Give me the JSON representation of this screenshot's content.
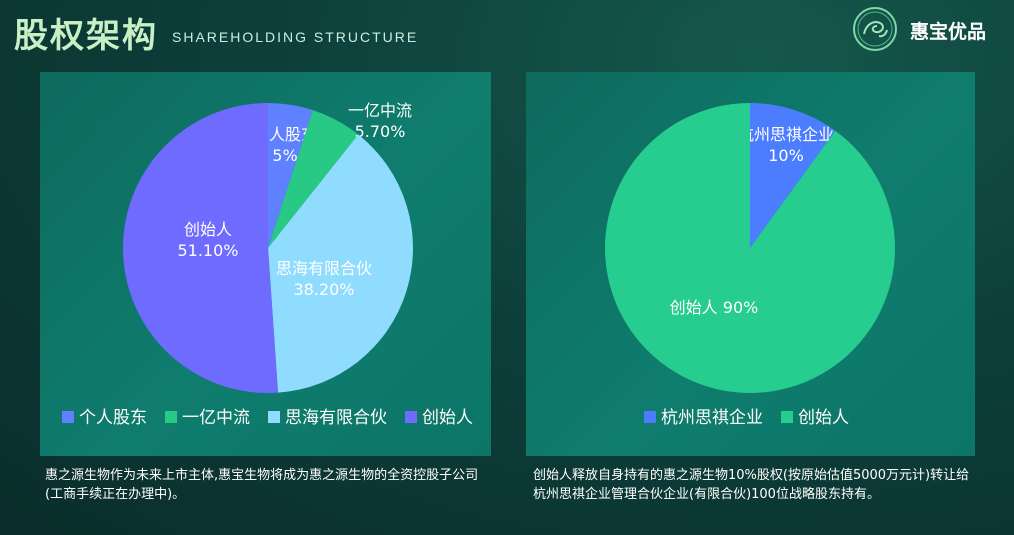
{
  "header": {
    "title_cn": "股权架构",
    "title_en": "SHAREHOLDING STRUCTURE",
    "brand": "惠宝优品",
    "logo_icon": "dragon-seal-icon"
  },
  "chart_data": [
    {
      "type": "pie",
      "categories": [
        "个人股东",
        "一亿中流",
        "思海有限合伙",
        "创始人"
      ],
      "values": [
        5,
        5.7,
        38.2,
        51.1
      ],
      "data_labels": [
        "5%",
        "5.70%",
        "38.20%",
        "51.10%"
      ],
      "colors": [
        "#5f80ff",
        "#27c985",
        "#8fdcff",
        "#6f6bff"
      ],
      "legend": "bottom",
      "title": "",
      "xlabel": "",
      "ylabel": ""
    },
    {
      "type": "pie",
      "categories": [
        "杭州思祺企业",
        "创始人"
      ],
      "values": [
        10,
        90
      ],
      "data_labels": [
        "10%",
        "90%"
      ],
      "colors": [
        "#4d7dff",
        "#27cc8f"
      ],
      "legend": "bottom",
      "title": "",
      "xlabel": "",
      "ylabel": ""
    }
  ],
  "captions": [
    "惠之源生物作为未来上市主体,惠宝生物将成为惠之源生物的全资控股子公司(工商手续正在办理中)。",
    "创始人释放自身持有的惠之源生物10%股权(按原始估值5000万元计)转让给杭州思祺企业管理合伙企业(有限合伙)100位战略股东持有。"
  ]
}
